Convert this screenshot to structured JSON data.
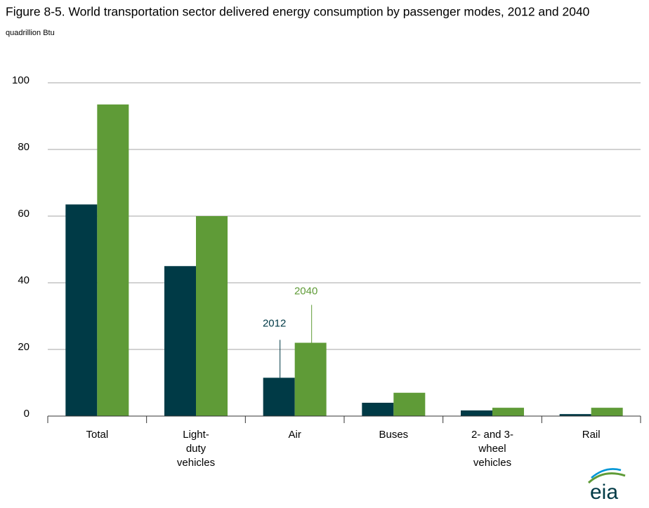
{
  "chart_data": {
    "type": "bar",
    "title": "Figure 8-5. World transportation sector delivered energy consumption by passenger modes, 2012 and 2040",
    "subtitle": "quadrillion Btu",
    "categories": [
      [
        "Total"
      ],
      [
        "Light-",
        "duty",
        "vehicles"
      ],
      [
        "Air"
      ],
      [
        "Buses"
      ],
      [
        "2- and 3-",
        "wheel",
        "vehicles"
      ],
      [
        "Rail"
      ]
    ],
    "series": [
      {
        "name": "2012",
        "color": "#003a46",
        "values": [
          63.5,
          45,
          11.5,
          4,
          1.7,
          0.6
        ]
      },
      {
        "name": "2040",
        "color": "#5f9b37",
        "values": [
          93.5,
          60,
          22,
          7,
          2.5,
          2.5
        ]
      }
    ],
    "ylim": [
      0,
      100
    ],
    "yticks": [
      0,
      20,
      40,
      60,
      80,
      100
    ],
    "grid": true,
    "legend_at_category": 2
  },
  "logo": "eia"
}
